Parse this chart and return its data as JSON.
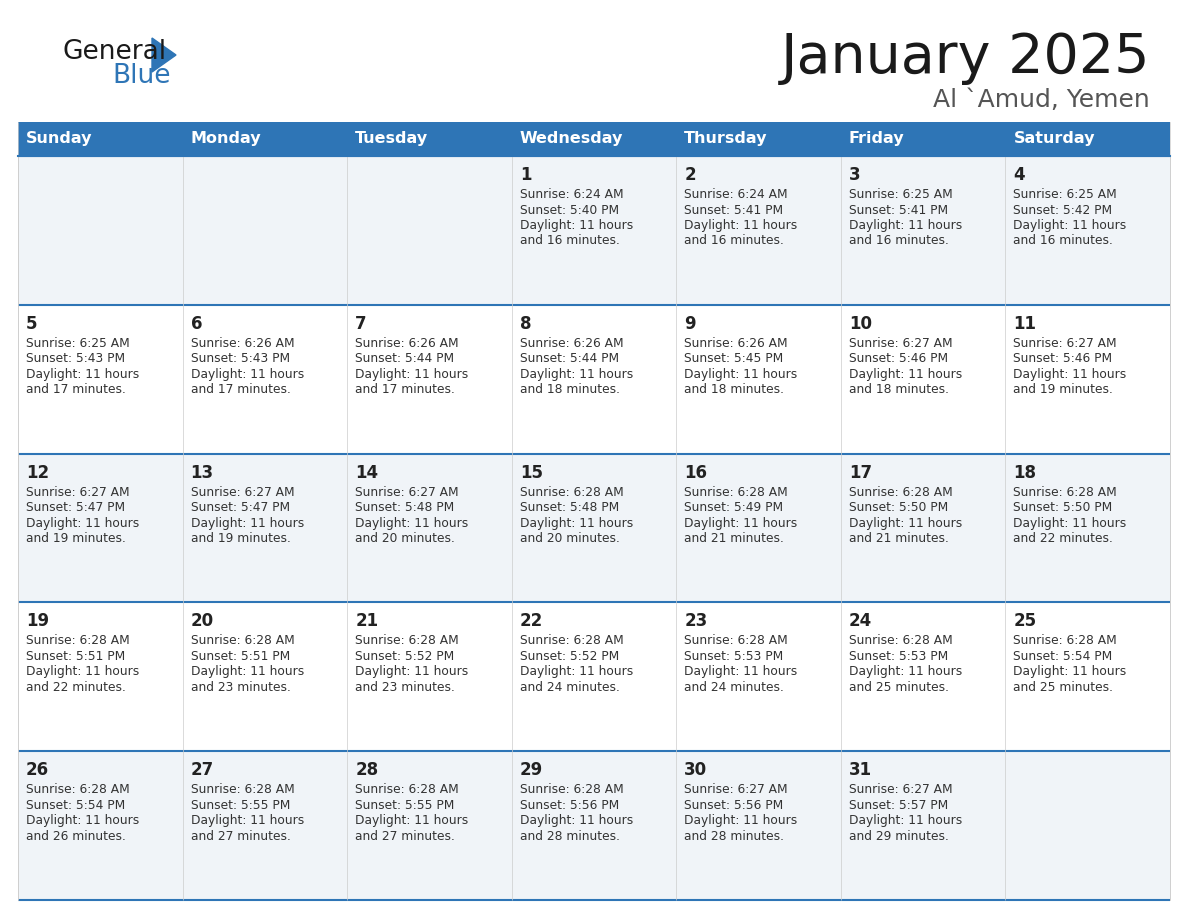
{
  "title": "January 2025",
  "subtitle": "Al `Amud, Yemen",
  "header_bg": "#2E75B6",
  "header_text_color": "#FFFFFF",
  "cell_bg_light": "#F0F4F8",
  "cell_bg_white": "#FFFFFF",
  "days_of_week": [
    "Sunday",
    "Monday",
    "Tuesday",
    "Wednesday",
    "Thursday",
    "Friday",
    "Saturday"
  ],
  "calendar_data": [
    [
      {
        "day": "",
        "sunrise": "",
        "sunset": "",
        "daylight": ""
      },
      {
        "day": "",
        "sunrise": "",
        "sunset": "",
        "daylight": ""
      },
      {
        "day": "",
        "sunrise": "",
        "sunset": "",
        "daylight": ""
      },
      {
        "day": "1",
        "sunrise": "6:24 AM",
        "sunset": "5:40 PM",
        "daylight": "11 hours and 16 minutes."
      },
      {
        "day": "2",
        "sunrise": "6:24 AM",
        "sunset": "5:41 PM",
        "daylight": "11 hours and 16 minutes."
      },
      {
        "day": "3",
        "sunrise": "6:25 AM",
        "sunset": "5:41 PM",
        "daylight": "11 hours and 16 minutes."
      },
      {
        "day": "4",
        "sunrise": "6:25 AM",
        "sunset": "5:42 PM",
        "daylight": "11 hours and 16 minutes."
      }
    ],
    [
      {
        "day": "5",
        "sunrise": "6:25 AM",
        "sunset": "5:43 PM",
        "daylight": "11 hours and 17 minutes."
      },
      {
        "day": "6",
        "sunrise": "6:26 AM",
        "sunset": "5:43 PM",
        "daylight": "11 hours and 17 minutes."
      },
      {
        "day": "7",
        "sunrise": "6:26 AM",
        "sunset": "5:44 PM",
        "daylight": "11 hours and 17 minutes."
      },
      {
        "day": "8",
        "sunrise": "6:26 AM",
        "sunset": "5:44 PM",
        "daylight": "11 hours and 18 minutes."
      },
      {
        "day": "9",
        "sunrise": "6:26 AM",
        "sunset": "5:45 PM",
        "daylight": "11 hours and 18 minutes."
      },
      {
        "day": "10",
        "sunrise": "6:27 AM",
        "sunset": "5:46 PM",
        "daylight": "11 hours and 18 minutes."
      },
      {
        "day": "11",
        "sunrise": "6:27 AM",
        "sunset": "5:46 PM",
        "daylight": "11 hours and 19 minutes."
      }
    ],
    [
      {
        "day": "12",
        "sunrise": "6:27 AM",
        "sunset": "5:47 PM",
        "daylight": "11 hours and 19 minutes."
      },
      {
        "day": "13",
        "sunrise": "6:27 AM",
        "sunset": "5:47 PM",
        "daylight": "11 hours and 19 minutes."
      },
      {
        "day": "14",
        "sunrise": "6:27 AM",
        "sunset": "5:48 PM",
        "daylight": "11 hours and 20 minutes."
      },
      {
        "day": "15",
        "sunrise": "6:28 AM",
        "sunset": "5:48 PM",
        "daylight": "11 hours and 20 minutes."
      },
      {
        "day": "16",
        "sunrise": "6:28 AM",
        "sunset": "5:49 PM",
        "daylight": "11 hours and 21 minutes."
      },
      {
        "day": "17",
        "sunrise": "6:28 AM",
        "sunset": "5:50 PM",
        "daylight": "11 hours and 21 minutes."
      },
      {
        "day": "18",
        "sunrise": "6:28 AM",
        "sunset": "5:50 PM",
        "daylight": "11 hours and 22 minutes."
      }
    ],
    [
      {
        "day": "19",
        "sunrise": "6:28 AM",
        "sunset": "5:51 PM",
        "daylight": "11 hours and 22 minutes."
      },
      {
        "day": "20",
        "sunrise": "6:28 AM",
        "sunset": "5:51 PM",
        "daylight": "11 hours and 23 minutes."
      },
      {
        "day": "21",
        "sunrise": "6:28 AM",
        "sunset": "5:52 PM",
        "daylight": "11 hours and 23 minutes."
      },
      {
        "day": "22",
        "sunrise": "6:28 AM",
        "sunset": "5:52 PM",
        "daylight": "11 hours and 24 minutes."
      },
      {
        "day": "23",
        "sunrise": "6:28 AM",
        "sunset": "5:53 PM",
        "daylight": "11 hours and 24 minutes."
      },
      {
        "day": "24",
        "sunrise": "6:28 AM",
        "sunset": "5:53 PM",
        "daylight": "11 hours and 25 minutes."
      },
      {
        "day": "25",
        "sunrise": "6:28 AM",
        "sunset": "5:54 PM",
        "daylight": "11 hours and 25 minutes."
      }
    ],
    [
      {
        "day": "26",
        "sunrise": "6:28 AM",
        "sunset": "5:54 PM",
        "daylight": "11 hours and 26 minutes."
      },
      {
        "day": "27",
        "sunrise": "6:28 AM",
        "sunset": "5:55 PM",
        "daylight": "11 hours and 27 minutes."
      },
      {
        "day": "28",
        "sunrise": "6:28 AM",
        "sunset": "5:55 PM",
        "daylight": "11 hours and 27 minutes."
      },
      {
        "day": "29",
        "sunrise": "6:28 AM",
        "sunset": "5:56 PM",
        "daylight": "11 hours and 28 minutes."
      },
      {
        "day": "30",
        "sunrise": "6:27 AM",
        "sunset": "5:56 PM",
        "daylight": "11 hours and 28 minutes."
      },
      {
        "day": "31",
        "sunrise": "6:27 AM",
        "sunset": "5:57 PM",
        "daylight": "11 hours and 29 minutes."
      },
      {
        "day": "",
        "sunrise": "",
        "sunset": "",
        "daylight": ""
      }
    ]
  ],
  "divider_color": "#2E75B6",
  "border_color": "#2E75B6",
  "grid_color": "#CCCCCC"
}
